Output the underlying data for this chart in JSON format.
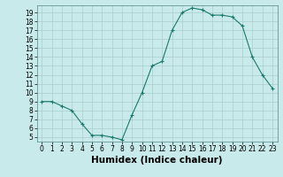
{
  "xlabel": "Humidex (Indice chaleur)",
  "x": [
    0,
    1,
    2,
    3,
    4,
    5,
    6,
    7,
    8,
    9,
    10,
    11,
    12,
    13,
    14,
    15,
    16,
    17,
    18,
    19,
    20,
    21,
    22,
    23
  ],
  "y": [
    9,
    9,
    8.5,
    8,
    6.5,
    5.2,
    5.2,
    5.0,
    4.7,
    7.5,
    10.0,
    13.0,
    13.5,
    17.0,
    19.0,
    19.5,
    19.3,
    18.7,
    18.7,
    18.5,
    17.5,
    14.0,
    12.0,
    10.5
  ],
  "xlim": [
    -0.5,
    23.5
  ],
  "ylim": [
    4.5,
    19.8
  ],
  "yticks": [
    5,
    6,
    7,
    8,
    9,
    10,
    11,
    12,
    13,
    14,
    15,
    16,
    17,
    18,
    19
  ],
  "xticks": [
    0,
    1,
    2,
    3,
    4,
    5,
    6,
    7,
    8,
    9,
    10,
    11,
    12,
    13,
    14,
    15,
    16,
    17,
    18,
    19,
    20,
    21,
    22,
    23
  ],
  "line_color": "#1a7a6e",
  "marker": "+",
  "bg_color": "#c8eaea",
  "grid_color": "#aacccc",
  "tick_label_fontsize": 5.5,
  "xlabel_fontsize": 7.5
}
